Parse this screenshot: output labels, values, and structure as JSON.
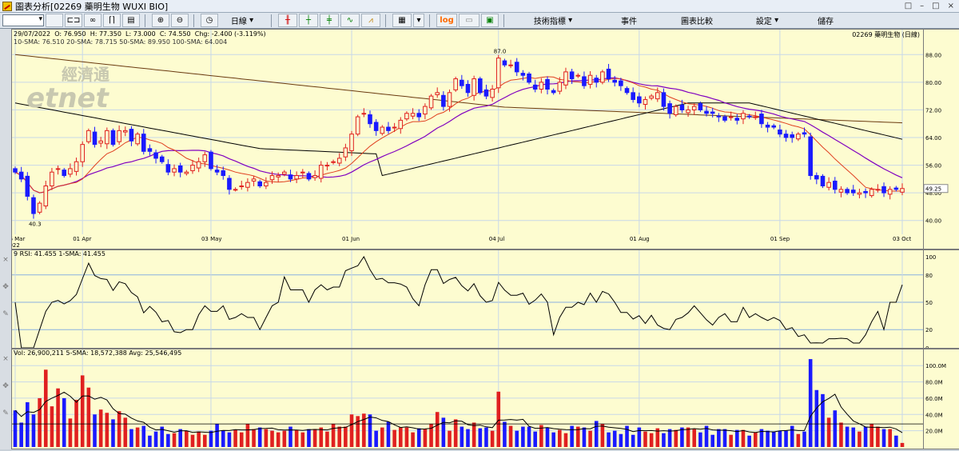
{
  "window": {
    "title": "圖表分析[02269 藥明生物 WUXI BIO]",
    "controls": [
      "□",
      "–",
      "□",
      "×"
    ]
  },
  "toolbar": {
    "period_label": "日線",
    "indicators_label": "技術指標",
    "events_label": "事件",
    "compare_label": "圖表比較",
    "settings_label": "設定",
    "save_label": "儲存",
    "log_label": "log"
  },
  "info": {
    "date": "29/07/2022",
    "open": "O: 76.950",
    "high": "H: 77.350",
    "low": "L: 73.000",
    "close": "C: 74.550",
    "change": "Chg: -2.400 (-3.119%)",
    "stock": "02269  藥明生物 (日線)",
    "sma_legend": "10-SMA: 76.510  20-SMA: 78.715  50-SMA: 89.950  100-SMA: 64.004"
  },
  "watermark": {
    "chinese": "經濟通",
    "latin": "etnet"
  },
  "price_panel": {
    "y_ticks": [
      "88.00",
      "80.00",
      "72.00",
      "64.00",
      "56.00",
      "48.00",
      "40.00"
    ],
    "y_values": [
      88,
      80,
      72,
      64,
      56,
      48,
      40
    ],
    "current_price": "49.25",
    "high_label": "87.0",
    "low_label": "40.3",
    "x_labels": [
      "16 Mar\n2022",
      "01 Apr",
      "03 May",
      "01 Jun",
      "04 Jul",
      "01 Aug",
      "01 Sep",
      "03 Oct"
    ],
    "x_label_index": [
      0,
      11,
      32,
      55,
      79,
      102,
      125,
      145
    ]
  },
  "rsi_panel": {
    "legend": "9 RSI: 41.455  1-SMA: 41.455",
    "y_ticks": [
      "100",
      "80",
      "50",
      "20",
      "0"
    ],
    "y_values": [
      100,
      80,
      50,
      20,
      0
    ]
  },
  "vol_panel": {
    "legend": "Vol: 26,900,211  5-SMA: 18,572,388  Avg: 25,546,495",
    "y_ticks": [
      "100.0M",
      "80.0M",
      "60.0M",
      "40.0M",
      "20.0M"
    ],
    "y_values": [
      100,
      80,
      60,
      40,
      20
    ]
  },
  "colors": {
    "up": "#e02020",
    "down": "#1a1aff",
    "sma10": "#e04020",
    "sma20": "#8000c0",
    "sma50": "#000000",
    "sma100": "#6a3a10",
    "panel_bg": "#fdfcd0"
  },
  "chart_data": {
    "type": "candlestick",
    "closes": [
      54,
      52,
      47,
      42,
      45,
      50,
      54,
      55,
      53,
      55,
      57,
      62,
      66,
      62,
      63,
      66,
      62,
      66,
      66,
      63,
      65,
      60,
      60,
      58,
      57,
      54,
      55,
      54,
      54,
      56,
      57,
      59,
      55,
      54,
      53,
      49,
      49,
      50,
      51,
      52,
      50,
      51,
      53,
      53,
      54,
      52,
      53,
      54,
      52,
      53,
      56,
      56,
      57,
      58,
      61,
      65,
      70,
      71,
      68,
      66,
      67,
      66,
      67,
      69,
      71,
      71,
      70,
      73,
      76,
      77,
      73,
      77,
      81,
      79,
      77,
      81,
      77,
      76,
      78,
      87,
      85,
      85,
      83,
      82,
      80,
      78,
      80,
      78,
      77,
      80,
      83,
      81,
      82,
      79,
      82,
      80,
      83,
      81,
      80,
      79,
      77,
      75,
      74,
      75,
      76,
      77,
      73,
      71,
      73,
      72,
      72,
      73,
      72,
      71,
      71,
      70,
      69,
      70,
      69,
      71,
      70,
      70,
      68,
      67,
      67,
      65,
      64,
      64,
      65,
      65,
      53,
      52,
      50,
      51,
      49,
      49,
      48,
      48,
      48,
      48,
      49,
      49,
      48,
      49,
      49,
      49.25
    ],
    "volumes_m": [
      45,
      30,
      55,
      40,
      60,
      95,
      50,
      72,
      60,
      35,
      58,
      88,
      73,
      40,
      46,
      42,
      34,
      44,
      36,
      22,
      24,
      26,
      14,
      19,
      25,
      16,
      17,
      22,
      20,
      15,
      19,
      15,
      20,
      28,
      20,
      18,
      21,
      18,
      28,
      22,
      24,
      22,
      20,
      18,
      20,
      25,
      21,
      18,
      22,
      22,
      24,
      19,
      28,
      25,
      25,
      40,
      38,
      41,
      40,
      20,
      24,
      31,
      21,
      24,
      24,
      18,
      23,
      22,
      28,
      43,
      36,
      20,
      34,
      25,
      22,
      30,
      23,
      24,
      20,
      68,
      31,
      26,
      20,
      25,
      25,
      19,
      27,
      24,
      18,
      21,
      17,
      26,
      25,
      24,
      20,
      32,
      28,
      18,
      20,
      16,
      26,
      15,
      24,
      19,
      17,
      23,
      17,
      22,
      21,
      24,
      24,
      22,
      18,
      26,
      15,
      22,
      22,
      15,
      21,
      21,
      14,
      18,
      22,
      20,
      19,
      20,
      20,
      26,
      16,
      19,
      108,
      70,
      65,
      36,
      45,
      30,
      25,
      24,
      19,
      25,
      28,
      25,
      22,
      22,
      14,
      5
    ]
  }
}
